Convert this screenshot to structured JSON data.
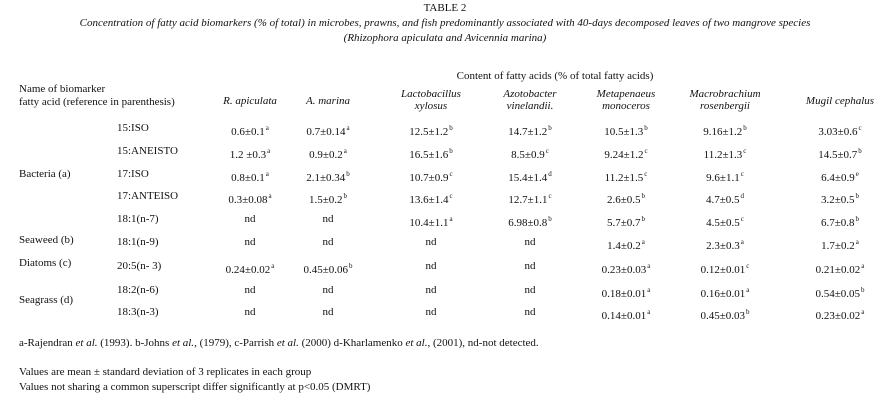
{
  "table_title": "TABLE 2",
  "caption": [
    "Concentration of fatty acid biomarkers (% of total) in microbes, prawns, and fish predominantly associated with 40-days decomposed leaves of two mangrove species",
    "(Rhizophora apiculata and Avicennia marina)"
  ],
  "header": {
    "name": [
      "Name of biomarker",
      "fatty acid (reference in parenthesis)"
    ],
    "content": "Content of fatty acids (% of total fatty acids)",
    "columns": [
      [
        "R. apiculata"
      ],
      [
        "A. marina"
      ],
      [
        "Lactobacillus",
        "xylosus"
      ],
      [
        "Azotobacter",
        "vinelandii."
      ],
      [
        "Metapenaeus",
        "monoceros"
      ],
      [
        "Macrobrachium",
        "rosenbergii"
      ],
      [
        "Mugil cephalus"
      ]
    ]
  },
  "groups": [
    "Bacteria (a)",
    "Seaweed (b)",
    "Diatoms (c)",
    "Seagrass (d)"
  ],
  "rows": [
    {
      "acid": "15:ISO",
      "cells": [
        {
          "value": "0.6±0.1",
          "sup": "a"
        },
        {
          "value": "0.7±0.14",
          "sup": "a"
        },
        {
          "value": "12.5±1.2",
          "sup": "b"
        },
        {
          "value": "14.7±1.2",
          "sup": "b"
        },
        {
          "value": "10.5±1.3",
          "sup": "b"
        },
        {
          "value": "9.16±1.2",
          "sup": "b"
        },
        {
          "value": "3.03±0.6",
          "sup": "c"
        }
      ]
    },
    {
      "acid": "15:ANEISTO",
      "cells": [
        {
          "value": "1.2 ±0.3",
          "sup": "a"
        },
        {
          "value": "0.9±0.2",
          "sup": "a"
        },
        {
          "value": "16.5±1.6",
          "sup": "b"
        },
        {
          "value": "8.5±0.9",
          "sup": "c"
        },
        {
          "value": "9.24±1.2",
          "sup": "c"
        },
        {
          "value": "11.2±1.3",
          "sup": "c"
        },
        {
          "value": "14.5±0.7",
          "sup": "b"
        }
      ]
    },
    {
      "acid": "17:ISO",
      "cells": [
        {
          "value": "0.8±0.1",
          "sup": "a"
        },
        {
          "value": "2.1±0.34",
          "sup": "b"
        },
        {
          "value": "10.7±0.9",
          "sup": "c"
        },
        {
          "value": "15.4±1.4",
          "sup": "d"
        },
        {
          "value": "11.2±1.5",
          "sup": "c"
        },
        {
          "value": "9.6±1.1",
          "sup": "c"
        },
        {
          "value": "6.4±0.9",
          "sup": "e"
        }
      ]
    },
    {
      "acid": "17:ANTEISO",
      "cells": [
        {
          "value": "0.3±0.08",
          "sup": "a"
        },
        {
          "value": "1.5±0.2",
          "sup": "b"
        },
        {
          "value": "13.6±1.4",
          "sup": "c"
        },
        {
          "value": "12.7±1.1",
          "sup": "c"
        },
        {
          "value": "2.6±0.5",
          "sup": "b"
        },
        {
          "value": "4.7±0.5",
          "sup": "d"
        },
        {
          "value": "3.2±0.5",
          "sup": "b"
        }
      ]
    },
    {
      "acid": "18:1(n-7)",
      "cells": [
        "nd",
        "nd",
        {
          "value": "10.4±1.1",
          "sup": "a"
        },
        {
          "value": "6.98±0.8",
          "sup": "b"
        },
        {
          "value": "5.7±0.7",
          "sup": "b"
        },
        {
          "value": "4.5±0.5",
          "sup": "c"
        },
        {
          "value": "6.7±0.8",
          "sup": "b"
        }
      ]
    },
    {
      "acid": "18:1(n-9)",
      "cells": [
        "nd",
        "nd",
        "nd",
        "nd",
        {
          "value": "1.4±0.2",
          "sup": "a"
        },
        {
          "value": "2.3±0.3",
          "sup": "a"
        },
        {
          "value": "1.7±0.2",
          "sup": "a"
        }
      ]
    },
    {
      "acid": "20:5(n- 3)",
      "cells": [
        {
          "value": "0.24±0.02",
          "sup": "a"
        },
        {
          "value": "0.45±0.06",
          "sup": "b"
        },
        "nd",
        "nd",
        {
          "value": "0.23±0.03",
          "sup": "a"
        },
        {
          "value": "0.12±0.01",
          "sup": "c"
        },
        {
          "value": "0.21±0.02",
          "sup": "a"
        }
      ]
    },
    {
      "acid": "18:2(n-6)",
      "cells": [
        "nd",
        "nd",
        "nd",
        "nd",
        {
          "value": "0.18±0.01",
          "sup": "a"
        },
        {
          "value": "0.16±0.01",
          "sup": "a"
        },
        {
          "value": "0.54±0.05",
          "sup": "b"
        }
      ]
    },
    {
      "acid": "18:3(n-3)",
      "cells": [
        "nd",
        "nd",
        "nd",
        "nd",
        {
          "value": "0.14±0.01",
          "sup": "a"
        },
        {
          "value": "0.45±0.03",
          "sup": "b"
        },
        {
          "value": "0.23±0.02",
          "sup": "a"
        }
      ]
    }
  ],
  "footnote": [
    "a-Rajendran ",
    "et al.",
    " (1993). b-Johns ",
    "et al.",
    ", (1979), c-Parrish ",
    "et al.",
    " (2000) d-Kharlamenko ",
    "et al.",
    ", (2001), nd-not detected."
  ],
  "notes": [
    "Values are mean ± standard deviation of 3 replicates in each group",
    "Values not sharing a common superscript differ significantly at p<0.05 (DMRT)"
  ]
}
